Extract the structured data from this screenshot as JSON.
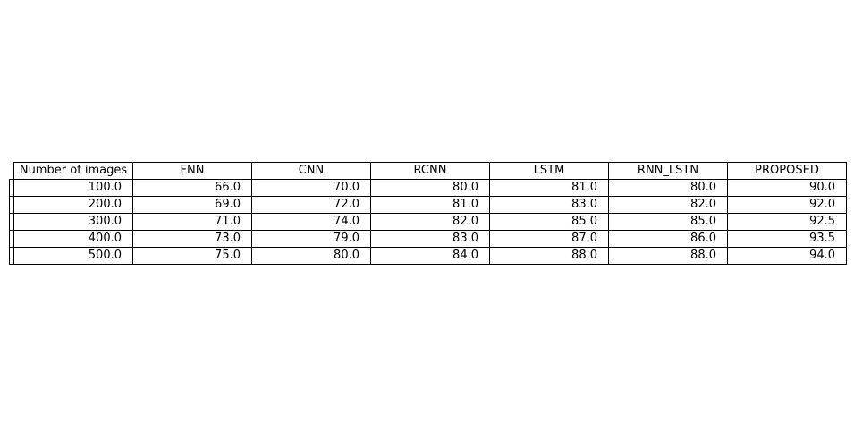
{
  "chart_data": {
    "type": "table",
    "columns": [
      "Number of images",
      "FNN",
      "CNN",
      "RCNN",
      "LSTM",
      "RNN_LSTN",
      "PROPOSED"
    ],
    "rows": [
      [
        "100.0",
        "66.0",
        "70.0",
        "80.0",
        "81.0",
        "80.0",
        "90.0"
      ],
      [
        "200.0",
        "69.0",
        "72.0",
        "81.0",
        "83.0",
        "82.0",
        "92.0"
      ],
      [
        "300.0",
        "71.0",
        "74.0",
        "82.0",
        "85.0",
        "85.0",
        "92.5"
      ],
      [
        "400.0",
        "73.0",
        "79.0",
        "83.0",
        "87.0",
        "86.0",
        "93.5"
      ],
      [
        "500.0",
        "75.0",
        "80.0",
        "84.0",
        "88.0",
        "88.0",
        "94.0"
      ]
    ]
  }
}
